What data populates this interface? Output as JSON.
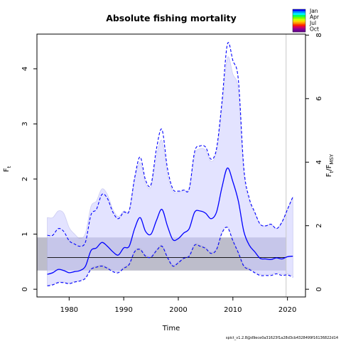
{
  "chart_data": {
    "type": "line",
    "title": "Absolute fishing mortality",
    "xlabel": "Time",
    "ylabel": "F",
    "ylabel_sub": "t",
    "y2label": "F",
    "y2label_sub1": "t",
    "y2label_mid": "/F",
    "y2label_sub2": "MSY",
    "footnote": "spict_v1.2.8@d9ece0a31623f1a28d3cb4328499f16136822d14",
    "xlim": [
      1974.1,
      2023.3
    ],
    "ylim": [
      -0.14,
      4.63
    ],
    "x_ticks": [
      1980,
      1990,
      2000,
      2010,
      2020
    ],
    "y_ticks": [
      0,
      1,
      2,
      3,
      4
    ],
    "y2_ticks": [
      0,
      2,
      4,
      6,
      8
    ],
    "y2_scale": 0.5765,
    "legend_labels": [
      "Jan",
      "Apr",
      "Jul",
      "Oct"
    ],
    "legend_colors": [
      "#0000ff",
      "#0090ff",
      "#00f0ff",
      "#00ff60",
      "#70ff00",
      "#d0ff00",
      "#ffd000",
      "#ff8000",
      "#ff2000",
      "#d00060",
      "#900090",
      "#6a0090"
    ],
    "fmsy": 0.5765,
    "fmsy_band": [
      0.34,
      0.94
    ],
    "vertical_line_x": 2019.75,
    "colors": {
      "estimate": "#0000ff",
      "ci_fill": "#e0e0ff",
      "ci_outline": "#c8c8f0",
      "fmsy_band_fill": "#d3d3d3",
      "overlap_fill": "#bcbcdc",
      "fmsy_line": "#000000"
    },
    "series": [
      {
        "name": "F",
        "x": [
          1976,
          1977,
          1978,
          1979,
          1980,
          1981,
          1982,
          1983,
          1984,
          1985,
          1986,
          1987,
          1988,
          1989,
          1990,
          1991,
          1992,
          1993,
          1994,
          1995,
          1996,
          1997,
          1998,
          1999,
          2000,
          2001,
          2002,
          2003,
          2004,
          2005,
          2006,
          2007,
          2008,
          2009,
          2010,
          2011,
          2012,
          2013,
          2014,
          2015,
          2016,
          2017,
          2018,
          2019,
          2020,
          2021
        ],
        "values": [
          0.27,
          0.3,
          0.36,
          0.34,
          0.3,
          0.32,
          0.34,
          0.42,
          0.7,
          0.75,
          0.85,
          0.78,
          0.68,
          0.62,
          0.75,
          0.78,
          1.1,
          1.3,
          1.05,
          1.0,
          1.25,
          1.45,
          1.15,
          0.9,
          0.92,
          1.02,
          1.1,
          1.4,
          1.42,
          1.38,
          1.28,
          1.4,
          1.85,
          2.2,
          1.95,
          1.6,
          1.05,
          0.8,
          0.68,
          0.56,
          0.55,
          0.54,
          0.57,
          0.55,
          0.59,
          0.6
        ]
      },
      {
        "name": "F lower",
        "x": [
          1976,
          1977,
          1978,
          1979,
          1980,
          1981,
          1982,
          1983,
          1984,
          1985,
          1986,
          1987,
          1988,
          1989,
          1990,
          1991,
          1992,
          1993,
          1994,
          1995,
          1996,
          1997,
          1998,
          1999,
          2000,
          2001,
          2002,
          2003,
          2004,
          2005,
          2006,
          2007,
          2008,
          2009,
          2010,
          2011,
          2012,
          2013,
          2014,
          2015,
          2016,
          2017,
          2018,
          2019,
          2020,
          2021
        ],
        "values": [
          0.06,
          0.08,
          0.12,
          0.12,
          0.1,
          0.13,
          0.15,
          0.2,
          0.36,
          0.4,
          0.42,
          0.38,
          0.32,
          0.3,
          0.38,
          0.45,
          0.68,
          0.72,
          0.6,
          0.58,
          0.7,
          0.78,
          0.58,
          0.42,
          0.48,
          0.56,
          0.6,
          0.8,
          0.78,
          0.74,
          0.65,
          0.72,
          1.02,
          1.12,
          0.88,
          0.66,
          0.42,
          0.36,
          0.3,
          0.25,
          0.25,
          0.25,
          0.28,
          0.25,
          0.26,
          0.22
        ]
      },
      {
        "name": "F upper",
        "x": [
          1976,
          1977,
          1978,
          1979,
          1980,
          1981,
          1982,
          1983,
          1984,
          1985,
          1986,
          1987,
          1988,
          1989,
          1990,
          1991,
          1992,
          1993,
          1994,
          1995,
          1996,
          1997,
          1998,
          1999,
          2000,
          2001,
          2002,
          2003,
          2004,
          2005,
          2006,
          2007,
          2008,
          2009,
          2010,
          2011,
          2012,
          2013,
          2014,
          2015,
          2016,
          2017,
          2018,
          2019,
          2020,
          2021
        ],
        "values": [
          0.98,
          0.98,
          1.1,
          1.05,
          0.88,
          0.82,
          0.78,
          0.86,
          1.35,
          1.45,
          1.72,
          1.65,
          1.4,
          1.28,
          1.4,
          1.42,
          2.02,
          2.4,
          1.98,
          1.9,
          2.55,
          2.9,
          2.2,
          1.82,
          1.78,
          1.8,
          1.82,
          2.5,
          2.6,
          2.58,
          2.36,
          2.55,
          3.4,
          4.45,
          4.15,
          3.8,
          2.2,
          1.65,
          1.4,
          1.18,
          1.15,
          1.18,
          1.1,
          1.22,
          1.45,
          1.68
        ]
      },
      {
        "name": "F index lower",
        "x": [
          1976,
          1977,
          1978,
          1979,
          1980,
          1981,
          1982,
          1983,
          1984,
          1985,
          1986,
          1987,
          1988,
          1989,
          1990,
          1991,
          1992,
          1993,
          1994,
          1995,
          1996,
          1997,
          1998,
          1999,
          2000,
          2001,
          2002,
          2003,
          2004,
          2005,
          2006,
          2007,
          2008,
          2009,
          2010,
          2011,
          2012,
          2013,
          2014,
          2015,
          2016,
          2017,
          2018,
          2019,
          2020,
          2021
        ],
        "values": [
          0.07,
          0.09,
          0.13,
          0.13,
          0.11,
          0.14,
          0.16,
          0.22,
          0.38,
          0.42,
          0.44,
          0.4,
          0.34,
          0.32,
          0.4,
          0.47,
          0.7,
          0.74,
          0.62,
          0.6,
          0.72,
          0.8,
          0.6,
          0.44,
          0.5,
          0.58,
          0.62,
          0.82,
          0.8,
          0.76,
          0.67,
          0.74,
          1.04,
          1.14,
          0.9,
          0.68,
          0.44,
          0.38,
          0.32,
          0.27,
          0.27,
          0.27,
          0.3,
          0.27,
          0.28,
          0.24
        ]
      },
      {
        "name": "F index upper",
        "x": [
          1976,
          1977,
          1978,
          1979,
          1980,
          1981,
          1982,
          1983,
          1984,
          1985,
          1986,
          1987,
          1988,
          1989,
          1990,
          1991,
          1992,
          1993,
          1994,
          1995,
          1996,
          1997,
          1998,
          1999,
          2000,
          2001,
          2002,
          2003,
          2004,
          2005,
          2006,
          2007,
          2008,
          2009,
          2010,
          2011,
          2012,
          2013,
          2014,
          2015,
          2016,
          2017,
          2018,
          2019,
          2020,
          2021
        ],
        "values": [
          1.3,
          1.3,
          1.42,
          1.38,
          1.12,
          1.0,
          0.92,
          1.02,
          1.5,
          1.6,
          1.82,
          1.72,
          1.45,
          1.32,
          1.42,
          1.44,
          2.0,
          2.3,
          1.92,
          1.86,
          2.42,
          2.7,
          2.1,
          1.78,
          1.76,
          1.8,
          1.84,
          2.44,
          2.55,
          2.52,
          2.32,
          2.5,
          3.3,
          4.2,
          3.9,
          3.6,
          2.1,
          1.6,
          1.38,
          1.18,
          1.15,
          1.18,
          1.1,
          1.22,
          1.45,
          1.68
        ]
      }
    ]
  }
}
